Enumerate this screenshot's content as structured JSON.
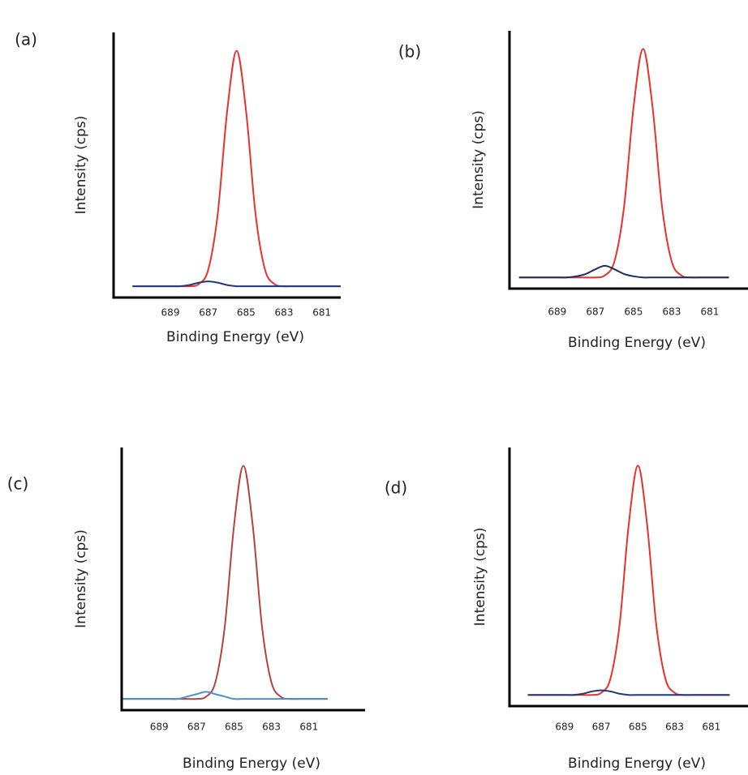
{
  "chart_data": [
    {
      "type": "line",
      "label": "(a)",
      "xlabel": "Binding Energy (eV)",
      "ylabel": "Intensity (cps)",
      "x": [
        691,
        690.5,
        690,
        689.5,
        689,
        688.5,
        688,
        687.5,
        687,
        686.5,
        686,
        685.5,
        685,
        684.5,
        684,
        683.5,
        683,
        682.5,
        682,
        681.5,
        681,
        680.5,
        680
      ],
      "xlim": [
        692,
        680
      ],
      "xticks": [
        689,
        687,
        685,
        683,
        681
      ],
      "ylim": [
        0,
        105
      ],
      "series": [
        {
          "color": "#e8322e",
          "values": [
            2,
            2,
            2,
            2,
            2,
            2,
            2,
            2.9,
            8.9,
            32,
            74.9,
            100,
            74.9,
            32,
            8.9,
            2.9,
            2,
            2,
            2,
            2,
            2,
            2,
            2
          ]
        },
        {
          "color": "#1f3a7a",
          "values": [
            2,
            2,
            2,
            2,
            2,
            2,
            2.5,
            3.5,
            4,
            3.5,
            2.5,
            2,
            2,
            2,
            2,
            2,
            2,
            2,
            2,
            2,
            2,
            2,
            2
          ]
        }
      ]
    },
    {
      "type": "line",
      "label": "(b)",
      "xlabel": "Binding Energy (eV)",
      "ylabel": "Intensity (cps)",
      "x": [
        691,
        690.5,
        690,
        689.5,
        689,
        688.5,
        688,
        687.5,
        687,
        686.5,
        686,
        685.5,
        685,
        684.5,
        684,
        683.5,
        683,
        682.5,
        682,
        681.5,
        681,
        680.5,
        680
      ],
      "xlim": [
        691.5,
        679
      ],
      "xticks": [
        689,
        687,
        685,
        683,
        681
      ],
      "ylim": [
        0,
        105
      ],
      "series": [
        {
          "color": "#e8322e",
          "values": [
            2,
            2,
            2,
            2,
            2,
            2,
            2,
            2,
            2,
            2.9,
            8.9,
            32,
            74.9,
            100,
            74.9,
            32,
            8.9,
            2.9,
            2,
            2,
            2,
            2,
            2
          ]
        },
        {
          "color": "#1a2c6b",
          "values": [
            2,
            2,
            2,
            2,
            2,
            2,
            2.5,
            3.5,
            5.5,
            7,
            5.5,
            3.5,
            2.5,
            2,
            2,
            2,
            2,
            2,
            2,
            2,
            2,
            2,
            2
          ]
        }
      ]
    },
    {
      "type": "line",
      "label": "(c)",
      "xlabel": "Binding Energy (eV)",
      "ylabel": "Intensity (cps)",
      "x": [
        691,
        690.5,
        690,
        689.5,
        689,
        688.5,
        688,
        687.5,
        687,
        686.5,
        686,
        685.5,
        685,
        684.5,
        684,
        683.5,
        683,
        682.5,
        682,
        681.5,
        681,
        680.5,
        680
      ],
      "xlim": [
        691,
        678
      ],
      "xticks": [
        689,
        687,
        685,
        683,
        681
      ],
      "ylim": [
        0,
        105
      ],
      "series": [
        {
          "color": "#b5443f",
          "values": [
            2,
            2,
            2,
            2,
            2,
            2,
            2,
            2,
            2,
            2.9,
            8.9,
            32,
            74.9,
            100,
            74.9,
            32,
            8.9,
            2.9,
            2,
            2,
            2,
            2,
            2
          ]
        },
        {
          "color": "#4a90d0",
          "values": [
            2,
            2,
            2,
            2,
            2,
            2,
            2,
            3,
            4,
            5,
            4,
            3,
            2,
            2,
            2,
            2,
            2,
            2,
            2,
            2,
            2,
            2,
            2
          ]
        }
      ]
    },
    {
      "type": "line",
      "label": "(d)",
      "xlabel": "Binding Energy (eV)",
      "ylabel": "Intensity (cps)",
      "x": [
        691,
        690.5,
        690,
        689.5,
        689,
        688.5,
        688,
        687.5,
        687,
        686.5,
        686,
        685.5,
        685,
        684.5,
        684,
        683.5,
        683,
        682.5,
        682,
        681.5,
        681,
        680.5,
        680
      ],
      "xlim": [
        692,
        679
      ],
      "xticks": [
        689,
        687,
        685,
        683,
        681
      ],
      "ylim": [
        0,
        105
      ],
      "series": [
        {
          "color": "#e8322e",
          "values": [
            2,
            2,
            2,
            2,
            2,
            2,
            2,
            2,
            2.9,
            8.9,
            32,
            74.9,
            100,
            74.9,
            32,
            8.9,
            2.9,
            2,
            2,
            2,
            2,
            2,
            2
          ]
        },
        {
          "color": "#1f3a7a",
          "values": [
            2,
            2,
            2,
            2,
            2,
            2,
            2.5,
            3.5,
            4,
            3.5,
            2.5,
            2,
            2,
            2,
            2,
            2,
            2,
            2,
            2,
            2,
            2,
            2,
            2
          ]
        }
      ]
    }
  ]
}
